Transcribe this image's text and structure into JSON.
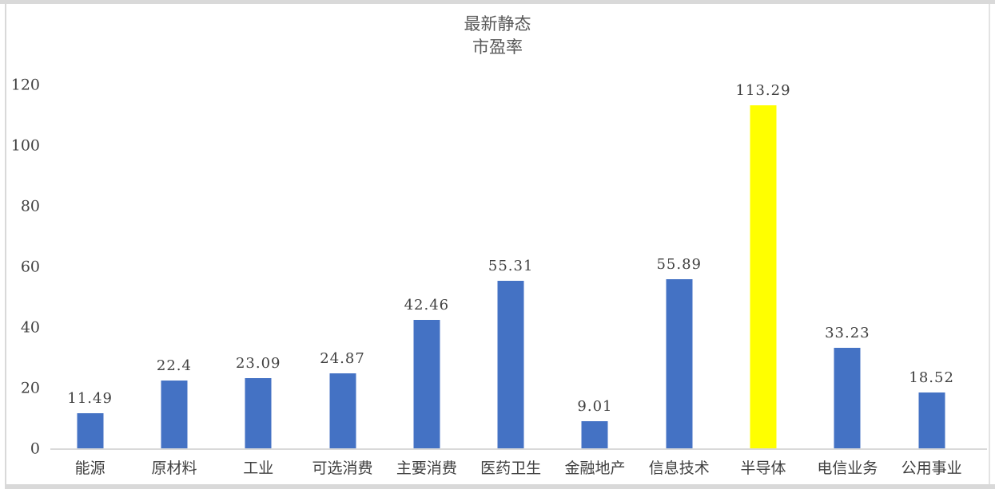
{
  "chart_data": {
    "type": "bar",
    "title": "最新静态\n市盈率",
    "categories": [
      "能源",
      "原材料",
      "工业",
      "可选消费",
      "主要消费",
      "医药卫生",
      "金融地产",
      "信息技术",
      "半导体",
      "电信业务",
      "公用事业"
    ],
    "values": [
      11.49,
      22.4,
      23.09,
      24.87,
      42.46,
      55.31,
      9.01,
      55.89,
      113.29,
      33.23,
      18.52
    ],
    "value_labels": [
      "11.49",
      "22.4",
      "23.09",
      "24.87",
      "42.46",
      "55.31",
      "9.01",
      "55.89",
      "113.29",
      "33.23",
      "18.52"
    ],
    "yticks": [
      0,
      20,
      40,
      60,
      80,
      100,
      120
    ],
    "ylim": [
      0,
      120
    ],
    "xlabel": "",
    "ylabel": "",
    "grid": false,
    "legend": "none",
    "highlight_index": 8,
    "colors": {
      "bar_default": "#4472c4",
      "bar_highlight": "#ffff00",
      "axis_line": "#d9d9d9",
      "tick_text": "#404040",
      "title_text": "#595959",
      "frame": "#d9d9d9"
    }
  }
}
